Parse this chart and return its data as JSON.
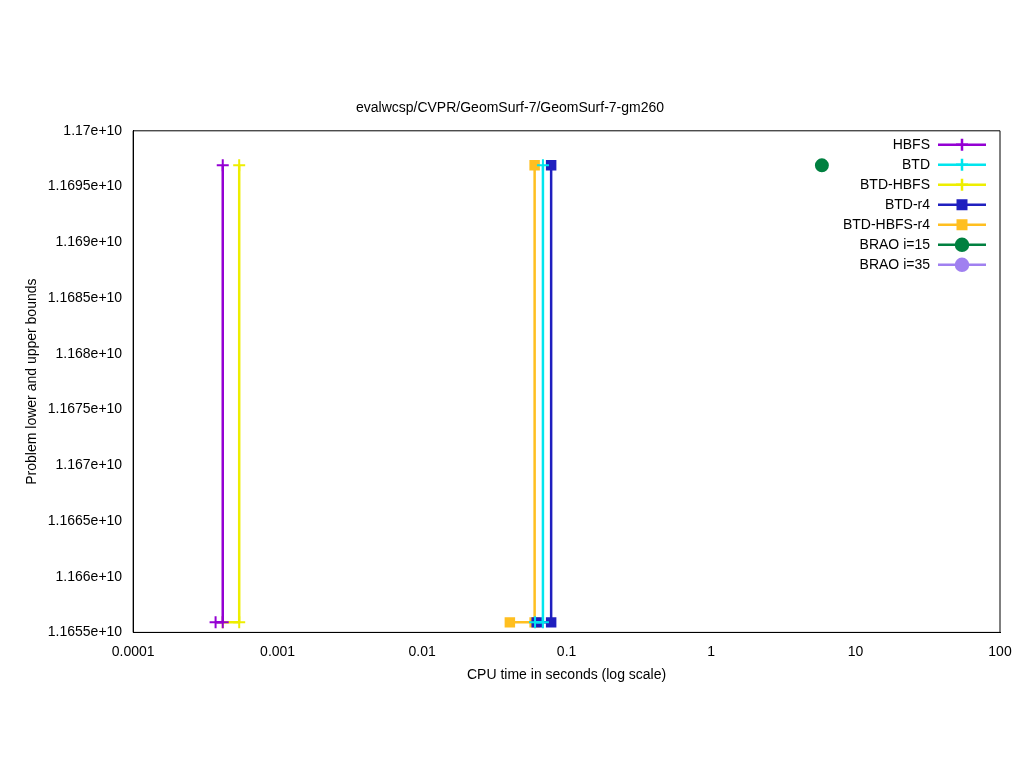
{
  "chart_data": {
    "type": "step",
    "title": "evalwcsp/CVPR/GeomSurf-7/GeomSurf-7-gm260",
    "xlabel": "CPU time in seconds (log scale)",
    "ylabel": "Problem lower and upper bounds",
    "log": "x",
    "xlim": [
      0.0001,
      100
    ],
    "xticks": [
      0.0001,
      0.001,
      0.01,
      0.1,
      1,
      10,
      100
    ],
    "ylim": [
      11655000000,
      11700000000
    ],
    "yticks": [
      {
        "value": 11655000000,
        "label": "1.1655e+10"
      },
      {
        "value": 11660000000,
        "label": "1.166e+10"
      },
      {
        "value": 11665000000,
        "label": "1.1665e+10"
      },
      {
        "value": 11670000000,
        "label": "1.167e+10"
      },
      {
        "value": 11675000000,
        "label": "1.1675e+10"
      },
      {
        "value": 11680000000,
        "label": "1.168e+10"
      },
      {
        "value": 11685000000,
        "label": "1.1685e+10"
      },
      {
        "value": 11690000000,
        "label": "1.169e+10"
      },
      {
        "value": 11695000000,
        "label": "1.1695e+10"
      },
      {
        "value": 11700000000,
        "label": "1.17e+10"
      }
    ],
    "grid": false,
    "legend": "top right",
    "series": [
      {
        "name": "HBFS",
        "color": "#9400d3",
        "marker": "cross",
        "x": [
          0.000372,
          0.000417,
          0.000417
        ],
        "values": [
          11655900000,
          11655900000,
          11696900000
        ]
      },
      {
        "name": "BTD",
        "color": "#00e5ee",
        "marker": "cross",
        "x": [
          0.0605,
          0.0686,
          0.0686
        ],
        "values": [
          11655900000,
          11655900000,
          11696900000
        ]
      },
      {
        "name": "BTD-HBFS",
        "color": "#eeee00",
        "marker": "cross",
        "x": [
          0.000417,
          0.000542,
          0.000542
        ],
        "values": [
          11655900000,
          11655900000,
          11696900000
        ]
      },
      {
        "name": "BTD-r4",
        "color": "#1f1fbf",
        "marker": "square",
        "x": [
          0.0621,
          0.0782,
          0.0782
        ],
        "values": [
          11655900000,
          11655900000,
          11696900000
        ]
      },
      {
        "name": "BTD-HBFS-r4",
        "color": "#ffbf20",
        "marker": "square",
        "x": [
          0.0405,
          0.0601,
          0.0601
        ],
        "values": [
          11655900000,
          11655900000,
          11696900000
        ]
      },
      {
        "name": "BRAO i=15",
        "color": "#008040",
        "marker": "circle",
        "x": [
          5.85
        ],
        "values": [
          11696900000
        ]
      },
      {
        "name": "BRAO i=35",
        "color": "#a080f0",
        "marker": "circle"
      }
    ]
  }
}
